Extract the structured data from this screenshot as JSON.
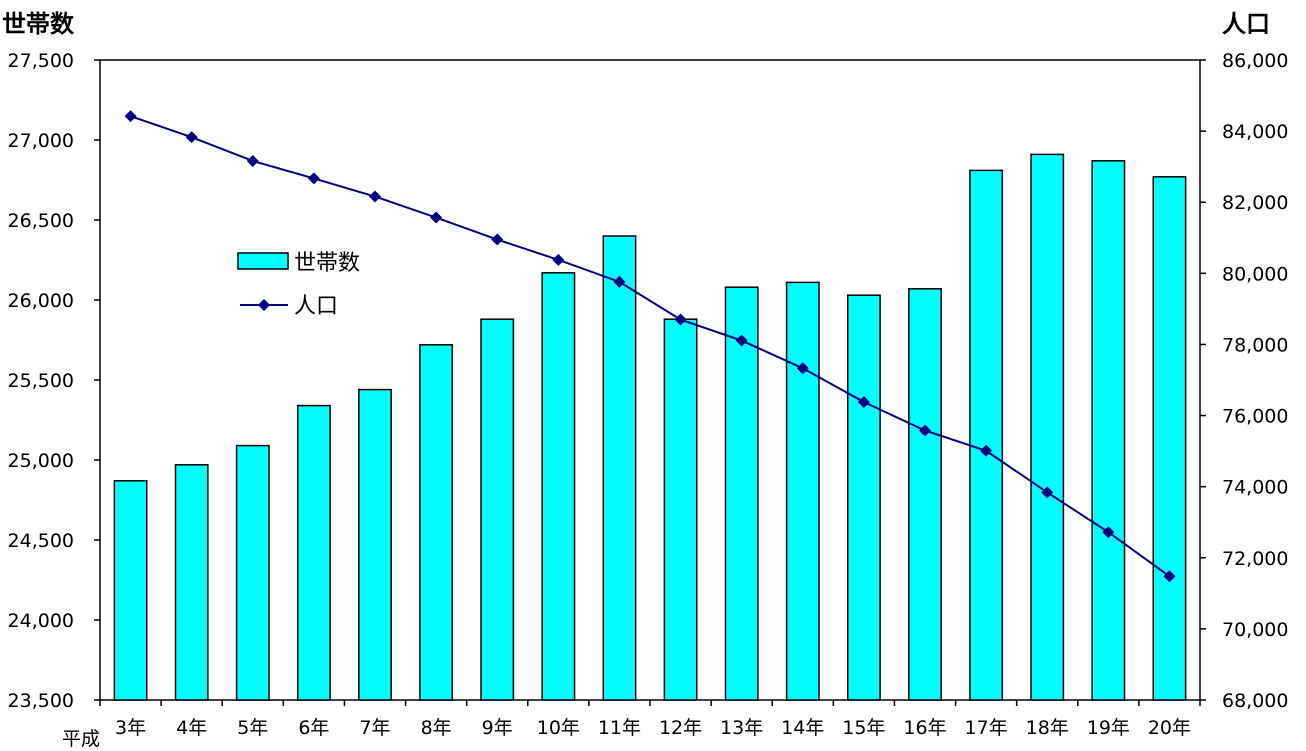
{
  "chart_data": {
    "type": "bar",
    "era_label": "平成",
    "categories": [
      "3年",
      "4年",
      "5年",
      "6年",
      "7年",
      "8年",
      "9年",
      "10年",
      "11年",
      "12年",
      "13年",
      "14年",
      "15年",
      "16年",
      "17年",
      "18年",
      "19年",
      "20年"
    ],
    "series": [
      {
        "name": "世帯数",
        "type": "bar",
        "axis": "left",
        "color": "#00FFFF",
        "values": [
          24870,
          24970,
          25090,
          25340,
          25440,
          25720,
          25880,
          26170,
          26400,
          25880,
          26080,
          26110,
          26030,
          26070,
          26810,
          26910,
          26870,
          26770
        ]
      },
      {
        "name": "人口",
        "type": "line",
        "axis": "right",
        "color": "#000080",
        "marker": "diamond",
        "values": [
          84420,
          83830,
          83160,
          82670,
          82160,
          81570,
          80950,
          80380,
          79760,
          78700,
          78110,
          77330,
          76380,
          75580,
          75010,
          73840,
          72720,
          71480
        ]
      }
    ],
    "y_left": {
      "label": "世帯数",
      "ylim": [
        23500,
        27500
      ],
      "ticks": [
        "23,500",
        "24,000",
        "24,500",
        "25,000",
        "25,500",
        "26,000",
        "26,500",
        "27,000",
        "27,500"
      ],
      "tick_values": [
        23500,
        24000,
        24500,
        25000,
        25500,
        26000,
        26500,
        27000,
        27500
      ]
    },
    "y_right": {
      "label": "人口",
      "ylim": [
        68000,
        86000
      ],
      "ticks": [
        "68,000",
        "70,000",
        "72,000",
        "74,000",
        "76,000",
        "78,000",
        "80,000",
        "82,000",
        "84,000",
        "86,000"
      ],
      "tick_values": [
        68000,
        70000,
        72000,
        74000,
        76000,
        78000,
        80000,
        82000,
        84000,
        86000
      ]
    },
    "legend": {
      "placement": "upper-left inside",
      "items": [
        "世帯数",
        "人口"
      ]
    },
    "grid": false
  }
}
